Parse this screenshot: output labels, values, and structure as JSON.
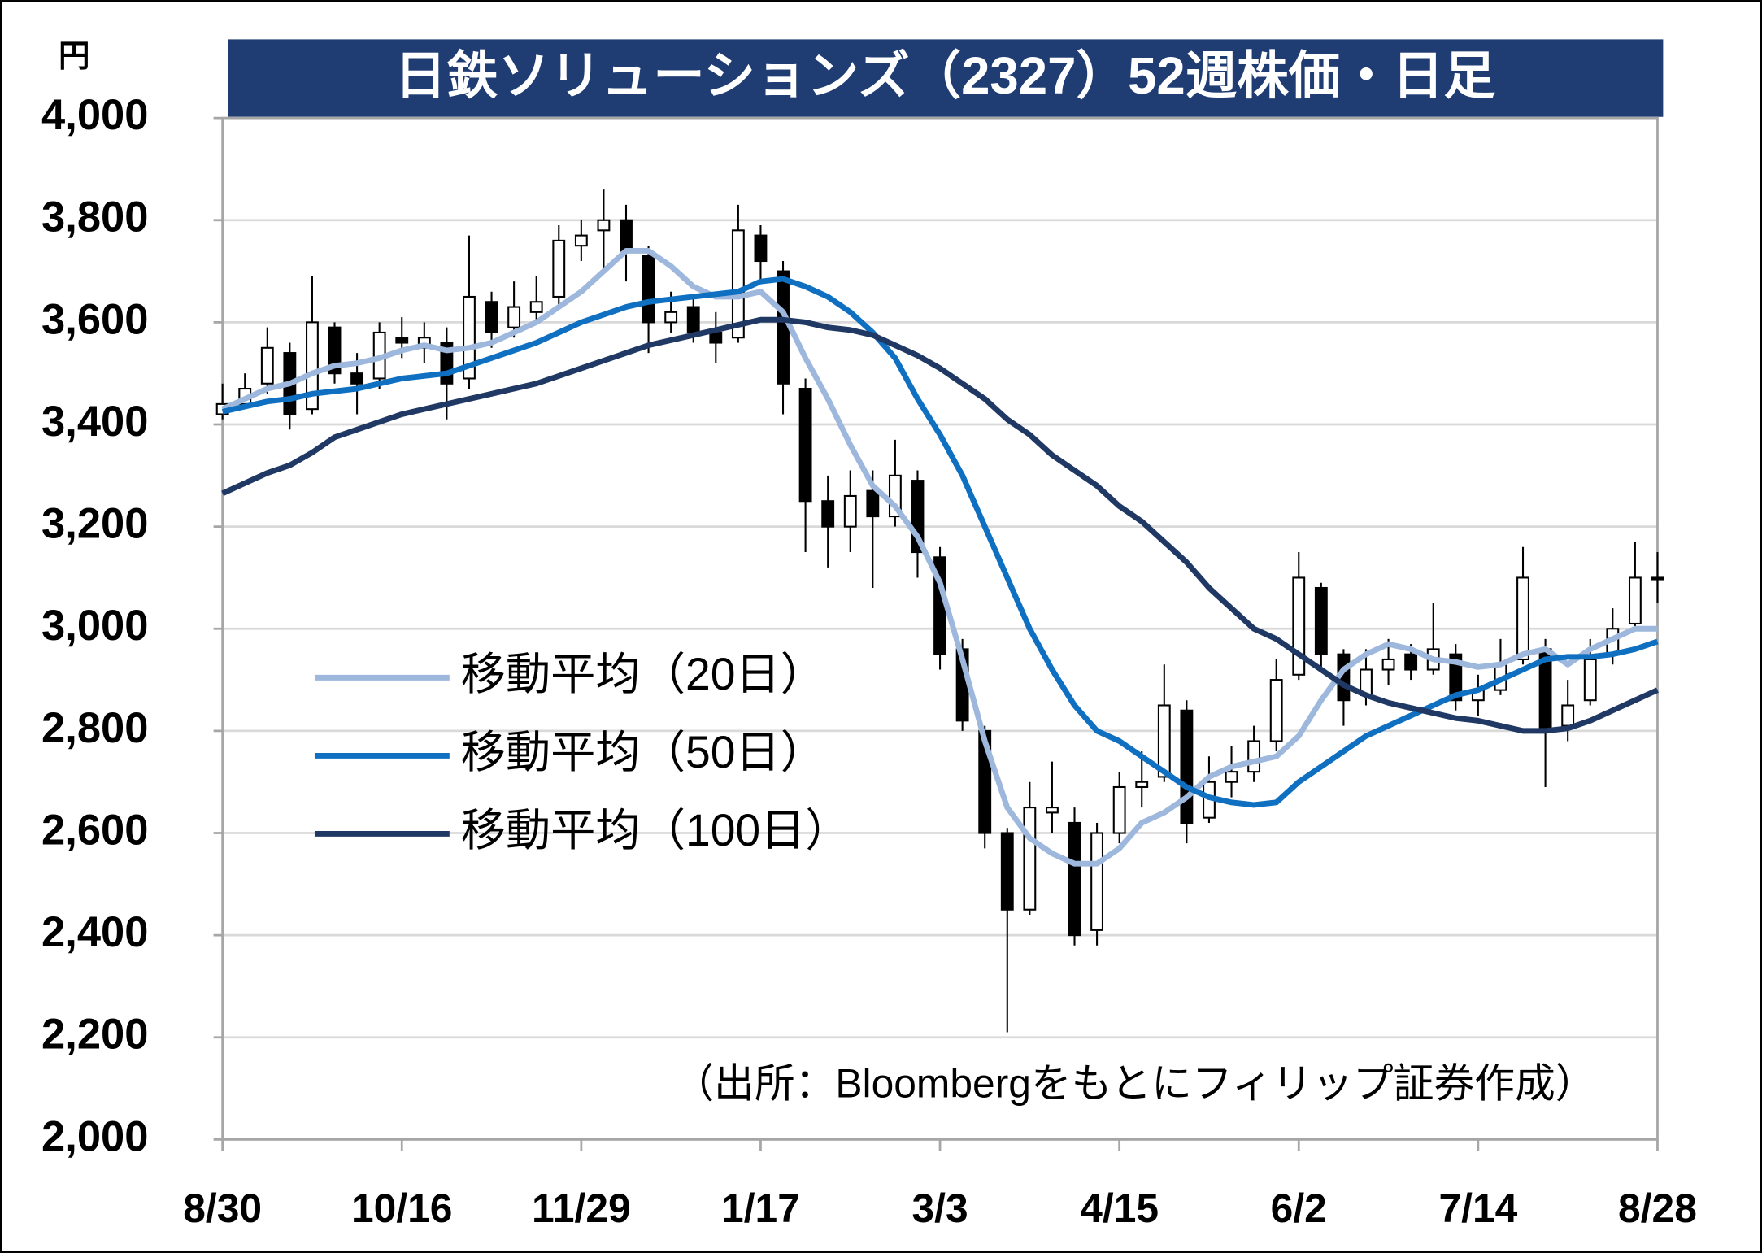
{
  "chart_data": {
    "type": "candlestick",
    "title": "日鉄ソリューションズ（2327）52週株価・日足",
    "y_unit": "円",
    "source": "（出所：Bloombergをもとにフィリップ証券作成）",
    "xlim": [
      0,
      64
    ],
    "xticks": [
      {
        "value": 0,
        "label": "8/30"
      },
      {
        "value": 8,
        "label": "10/16"
      },
      {
        "value": 16,
        "label": "11/29"
      },
      {
        "value": 24,
        "label": "1/17"
      },
      {
        "value": 32,
        "label": "3/3"
      },
      {
        "value": 40,
        "label": "4/15"
      },
      {
        "value": 48,
        "label": "6/2"
      },
      {
        "value": 56,
        "label": "7/14"
      },
      {
        "value": 64,
        "label": "8/28"
      }
    ],
    "ylim": [
      2000,
      4000
    ],
    "yticks": [
      {
        "value": 2000,
        "label": "2,000"
      },
      {
        "value": 2200,
        "label": "2,200"
      },
      {
        "value": 2400,
        "label": "2,400"
      },
      {
        "value": 2600,
        "label": "2,600"
      },
      {
        "value": 2800,
        "label": "2,800"
      },
      {
        "value": 3000,
        "label": "3,000"
      },
      {
        "value": 3200,
        "label": "3,200"
      },
      {
        "value": 3400,
        "label": "3,400"
      },
      {
        "value": 3600,
        "label": "3,600"
      },
      {
        "value": 3800,
        "label": "3,800"
      },
      {
        "value": 4000,
        "label": "4,000"
      }
    ],
    "grid": true,
    "open": [
      3420,
      3440,
      3480,
      3540,
      3430,
      3590,
      3500,
      3490,
      3570,
      3550,
      3560,
      3490,
      3640,
      3590,
      3620,
      3650,
      3750,
      3780,
      3800,
      3730,
      3600,
      3630,
      3580,
      3570,
      3770,
      3700,
      3470,
      3250,
      3200,
      3270,
      3220,
      3290,
      3140,
      2960,
      2800,
      2600,
      2450,
      2640,
      2620,
      2410,
      2600,
      2690,
      2710,
      2840,
      2630,
      2700,
      2720,
      2780,
      2910,
      3080,
      2950,
      2870,
      2920,
      2950,
      2920,
      2950,
      2860,
      2880,
      2940,
      2960,
      2810,
      2860,
      2950,
      3010,
      3100
    ],
    "high": [
      3480,
      3500,
      3590,
      3560,
      3690,
      3600,
      3540,
      3600,
      3610,
      3600,
      3590,
      3770,
      3660,
      3680,
      3690,
      3790,
      3800,
      3860,
      3830,
      3750,
      3660,
      3650,
      3620,
      3830,
      3790,
      3720,
      3490,
      3300,
      3310,
      3310,
      3370,
      3310,
      3160,
      2980,
      2810,
      2610,
      2700,
      2740,
      2650,
      2620,
      2720,
      2760,
      2930,
      2860,
      2750,
      2770,
      2810,
      2940,
      3150,
      3090,
      2960,
      2960,
      2980,
      2970,
      3050,
      2970,
      2910,
      2980,
      3160,
      2980,
      2900,
      2980,
      3040,
      3170,
      3150
    ],
    "low": [
      3410,
      3430,
      3460,
      3390,
      3420,
      3480,
      3420,
      3470,
      3530,
      3520,
      3410,
      3470,
      3550,
      3570,
      3600,
      3630,
      3720,
      3700,
      3680,
      3540,
      3580,
      3560,
      3520,
      3560,
      3680,
      3420,
      3150,
      3120,
      3150,
      3080,
      3200,
      3100,
      2920,
      2800,
      2570,
      2210,
      2440,
      2600,
      2380,
      2380,
      2580,
      2650,
      2700,
      2580,
      2620,
      2670,
      2700,
      2760,
      2900,
      2920,
      2810,
      2850,
      2890,
      2900,
      2910,
      2840,
      2830,
      2870,
      2930,
      2690,
      2780,
      2850,
      2930,
      3000,
      3050
    ],
    "close": [
      3440,
      3470,
      3550,
      3420,
      3600,
      3500,
      3480,
      3580,
      3560,
      3570,
      3480,
      3650,
      3580,
      3630,
      3640,
      3760,
      3770,
      3800,
      3740,
      3600,
      3620,
      3580,
      3560,
      3780,
      3720,
      3480,
      3250,
      3200,
      3260,
      3220,
      3300,
      3150,
      2950,
      2820,
      2600,
      2450,
      2650,
      2650,
      2400,
      2600,
      2690,
      2700,
      2850,
      2620,
      2700,
      2720,
      2780,
      2900,
      3100,
      2950,
      2860,
      2920,
      2940,
      2920,
      2960,
      2860,
      2880,
      2930,
      3100,
      2800,
      2850,
      2940,
      3000,
      3100,
      3100
    ],
    "series": [
      {
        "name": "移動平均（20日）",
        "color": "#9db8dc",
        "values": [
          3430,
          3450,
          3470,
          3480,
          3500,
          3515,
          3520,
          3530,
          3545,
          3555,
          3545,
          3550,
          3560,
          3580,
          3600,
          3630,
          3660,
          3700,
          3740,
          3740,
          3710,
          3670,
          3650,
          3650,
          3660,
          3620,
          3530,
          3450,
          3360,
          3280,
          3240,
          3180,
          3090,
          2940,
          2780,
          2650,
          2590,
          2560,
          2540,
          2540,
          2570,
          2620,
          2640,
          2670,
          2710,
          2730,
          2740,
          2750,
          2790,
          2860,
          2920,
          2950,
          2970,
          2960,
          2940,
          2935,
          2925,
          2930,
          2950,
          2960,
          2930,
          2960,
          2980,
          3000,
          3000
        ]
      },
      {
        "name": "移動平均（50日）",
        "color": "#0f6fc0",
        "values": [
          3425,
          3435,
          3445,
          3450,
          3460,
          3465,
          3470,
          3480,
          3490,
          3495,
          3500,
          3515,
          3530,
          3545,
          3560,
          3580,
          3600,
          3615,
          3630,
          3640,
          3645,
          3650,
          3655,
          3660,
          3680,
          3685,
          3670,
          3650,
          3620,
          3580,
          3530,
          3450,
          3380,
          3300,
          3200,
          3100,
          3000,
          2920,
          2850,
          2800,
          2780,
          2750,
          2720,
          2690,
          2670,
          2660,
          2655,
          2660,
          2700,
          2730,
          2760,
          2790,
          2810,
          2830,
          2850,
          2870,
          2880,
          2900,
          2920,
          2940,
          2945,
          2945,
          2950,
          2960,
          2975
        ]
      },
      {
        "name": "移動平均（100日）",
        "color": "#1f3864",
        "values": [
          3265,
          3285,
          3305,
          3320,
          3345,
          3375,
          3390,
          3405,
          3420,
          3430,
          3440,
          3450,
          3460,
          3470,
          3480,
          3495,
          3510,
          3525,
          3540,
          3555,
          3565,
          3575,
          3585,
          3595,
          3605,
          3605,
          3600,
          3590,
          3585,
          3575,
          3555,
          3535,
          3510,
          3480,
          3450,
          3410,
          3380,
          3340,
          3310,
          3280,
          3240,
          3210,
          3170,
          3130,
          3080,
          3040,
          3000,
          2980,
          2950,
          2920,
          2890,
          2870,
          2855,
          2845,
          2835,
          2825,
          2820,
          2810,
          2800,
          2800,
          2805,
          2820,
          2840,
          2860,
          2880
        ]
      }
    ]
  }
}
